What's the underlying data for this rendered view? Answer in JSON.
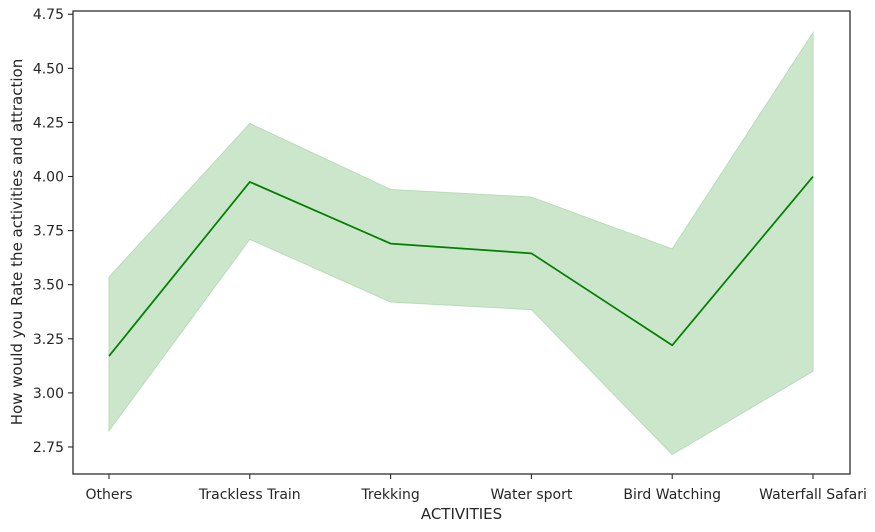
{
  "chart_data": {
    "type": "line",
    "categories": [
      "Others",
      "Trackless Train",
      "Trekking",
      "Water sport",
      "Bird Watching",
      "Waterfall Safari"
    ],
    "series": [
      {
        "values": [
          3.17,
          3.975,
          3.69,
          3.645,
          3.22,
          4.0
        ],
        "ci_lower": [
          2.825,
          3.71,
          3.42,
          3.385,
          2.715,
          3.1
        ],
        "ci_upper": [
          3.535,
          4.245,
          3.94,
          3.905,
          3.665,
          4.665
        ],
        "color": "#008000",
        "band_color": "#b7dcb7"
      }
    ],
    "xlabel": "ACTIVITIES",
    "ylabel": "How would you Rate the activities and attraction",
    "ylim": [
      2.625,
      4.765
    ],
    "yticks": [
      "2.75",
      "3.00",
      "3.25",
      "3.50",
      "3.75",
      "4.00",
      "4.25",
      "4.50",
      "4.75"
    ],
    "grid": false
  }
}
